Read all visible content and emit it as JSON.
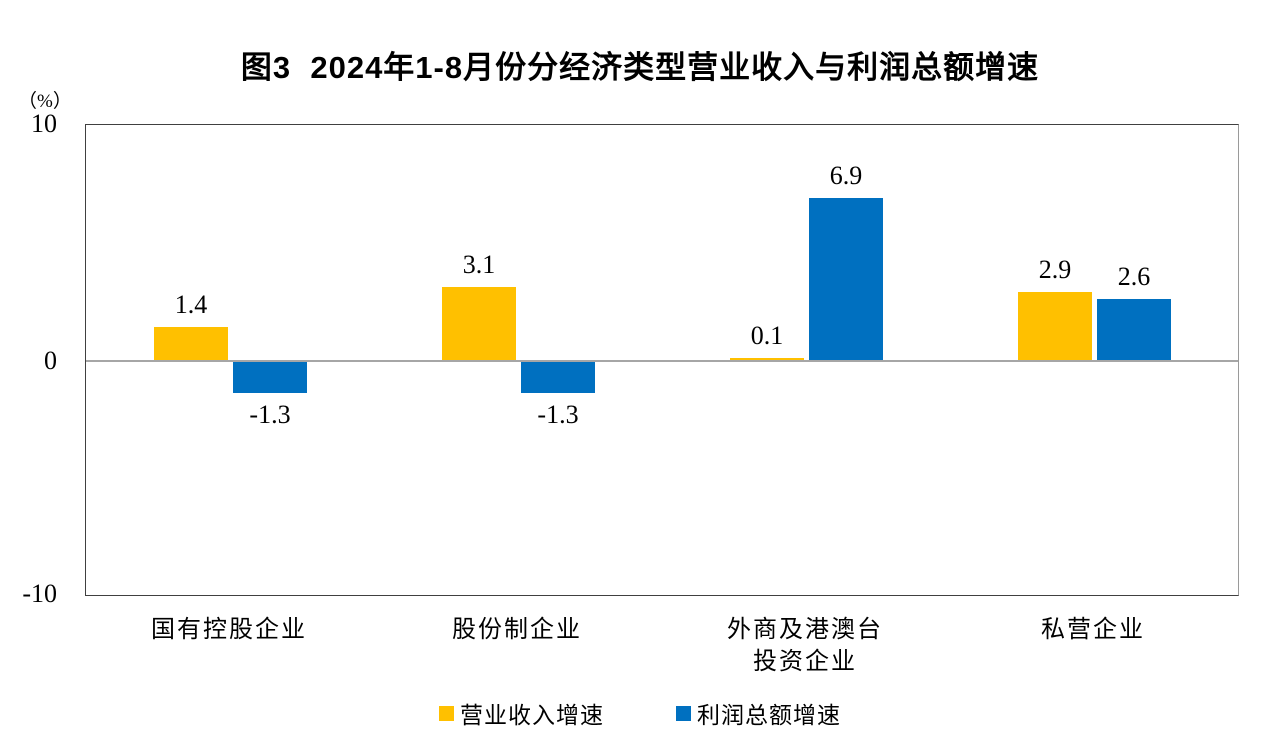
{
  "title": "图3  2024年1-8月份分经济类型营业收入与利润总额增速",
  "y_axis_unit": "（%）",
  "y_ticks": [
    "10",
    "0",
    "-10"
  ],
  "colors": {
    "revenue_bar": "#FFC000",
    "profit_bar": "#0070C0",
    "zero_line": "#A6A6A6",
    "plot_border": "#404040"
  },
  "chart_data": {
    "type": "bar",
    "categories": [
      "国有控股企业",
      "股份制企业",
      "外商及港澳台\n投资企业",
      "私营企业"
    ],
    "series": [
      {
        "name": "营业收入增速",
        "color": "#FFC000",
        "values": [
          1.4,
          3.1,
          0.1,
          2.9
        ]
      },
      {
        "name": "利润总额增速",
        "color": "#0070C0",
        "values": [
          -1.3,
          -1.3,
          6.9,
          2.6
        ]
      }
    ],
    "title": "图3  2024年1-8月份分经济类型营业收入与利润总额增速",
    "xlabel": "",
    "ylabel": "（%）",
    "ylim": [
      -10,
      10
    ],
    "yticks": [
      10,
      0,
      -10
    ],
    "grid": false,
    "legend_position": "bottom",
    "value_labels": true
  }
}
